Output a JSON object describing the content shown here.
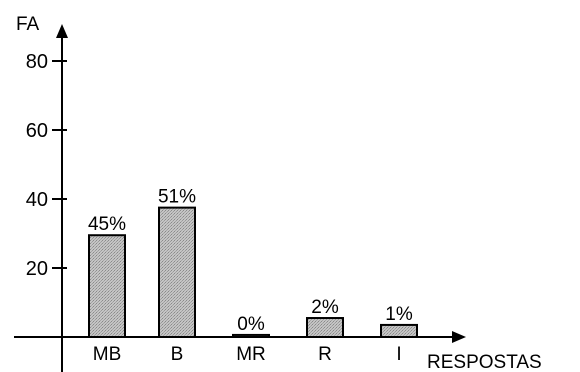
{
  "chart_data": {
    "type": "bar",
    "ylabel": "FA",
    "xlabel": "RESPOSTAS",
    "categories": [
      "MB",
      "B",
      "MR",
      "R",
      "I"
    ],
    "values": [
      29.5,
      37.5,
      0.6,
      5.5,
      3.5
    ],
    "value_labels": [
      "45%",
      "51%",
      "0%",
      "2%",
      "1%"
    ],
    "yticks": [
      20,
      40,
      60,
      80
    ],
    "ylim": [
      0,
      85
    ],
    "grid": false,
    "bar_fill": "#bdbdbd"
  }
}
